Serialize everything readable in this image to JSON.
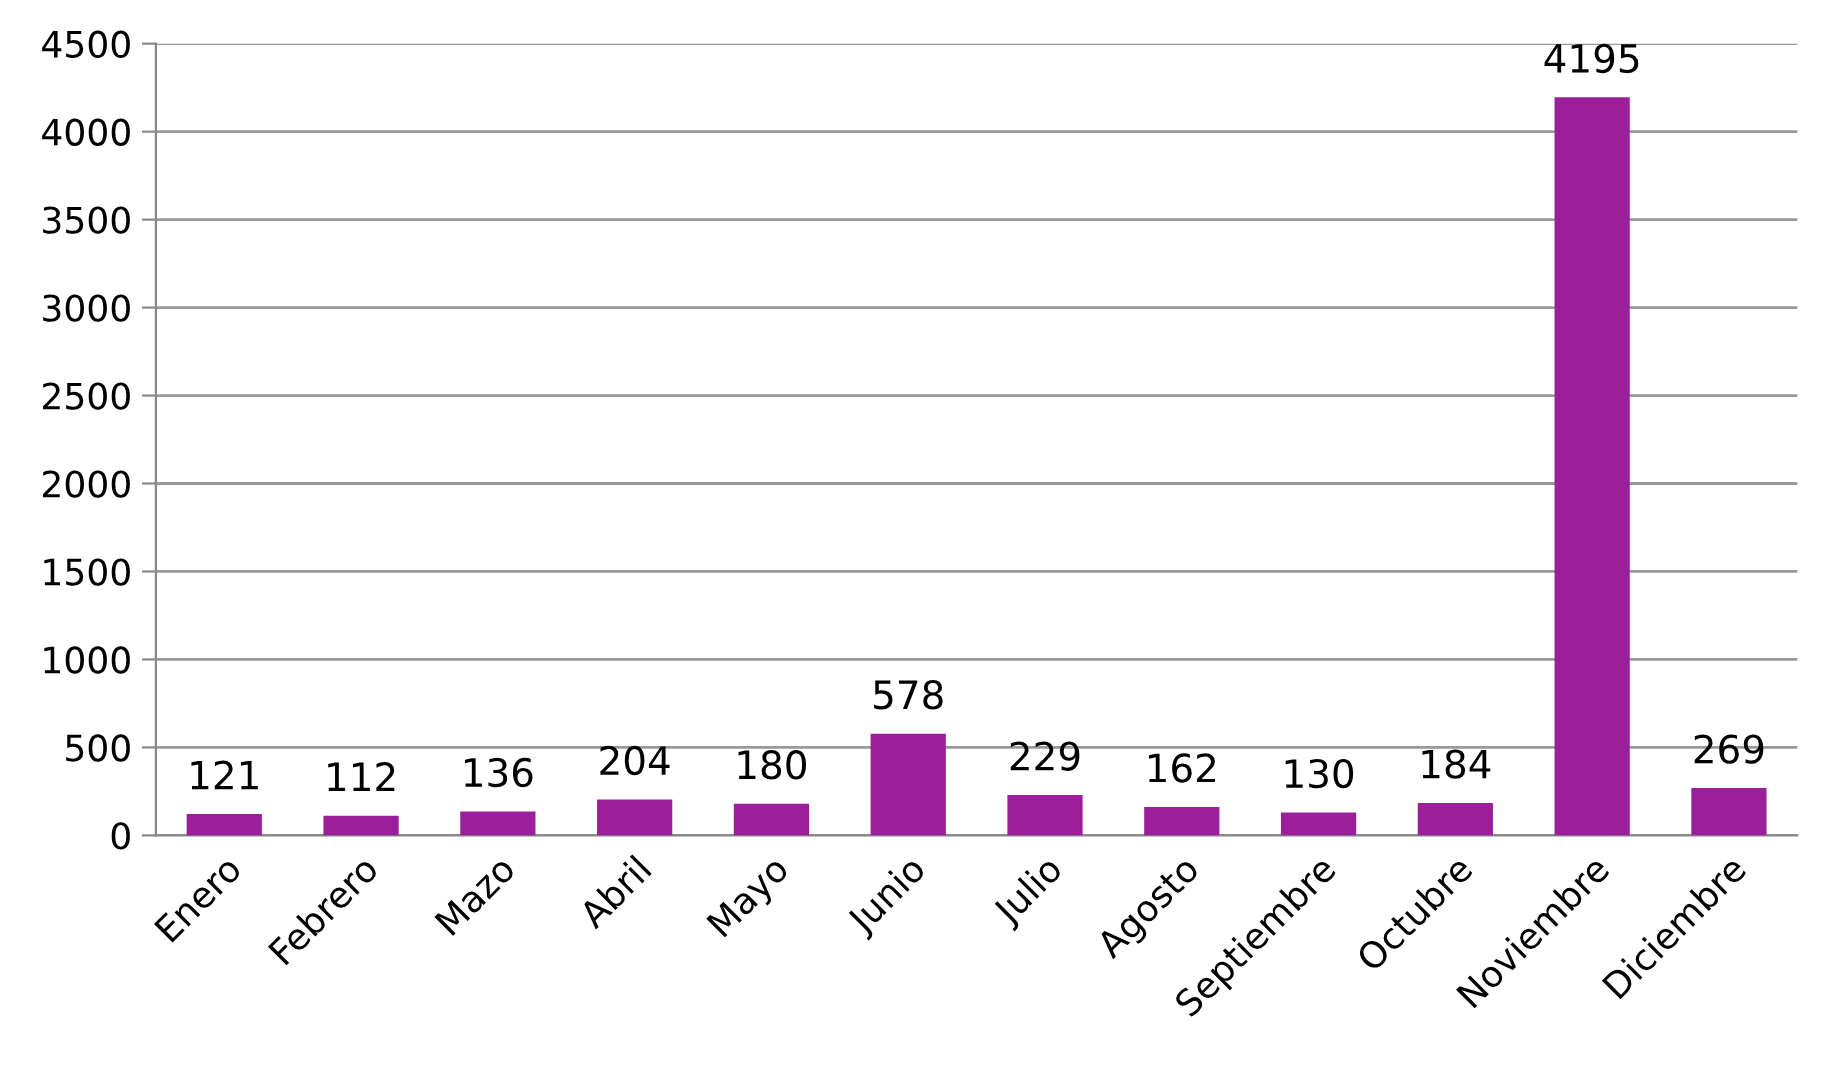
{
  "chart_data": {
    "type": "bar",
    "categories": [
      "Enero",
      "Febrero",
      "Mazo",
      "Abril",
      "Mayo",
      "Junio",
      "Julio",
      "Agosto",
      "Septiembre",
      "Octubre",
      "Noviembre",
      "Diciembre"
    ],
    "values": [
      121,
      112,
      136,
      204,
      180,
      578,
      229,
      162,
      130,
      184,
      4195,
      269
    ],
    "color": "#9b1f9b",
    "ylim": [
      0,
      4500
    ],
    "yticks": [
      0,
      500,
      1000,
      1500,
      2000,
      2500,
      3000,
      3500,
      4000,
      4500
    ],
    "grid": "y",
    "data_labels": true,
    "legend": false
  }
}
